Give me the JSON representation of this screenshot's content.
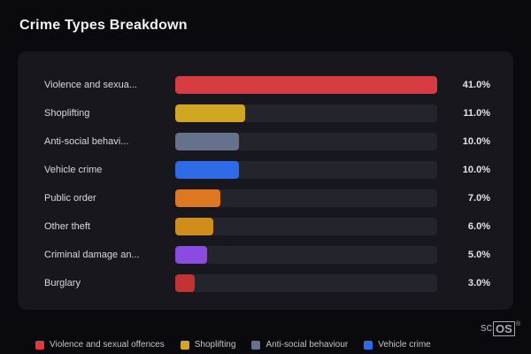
{
  "title": "Crime Types Breakdown",
  "chart_data": {
    "type": "bar",
    "orientation": "horizontal",
    "title": "Crime Types Breakdown",
    "xlabel": "",
    "ylabel": "",
    "xlim": [
      0,
      41
    ],
    "grid": false,
    "legend_position": "bottom",
    "categories": [
      "Violence and sexual offences",
      "Shoplifting",
      "Anti-social behaviour",
      "Vehicle crime",
      "Public order",
      "Other theft",
      "Criminal damage and arson",
      "Burglary"
    ],
    "display_labels": [
      "Violence and sexua...",
      "Shoplifting",
      "Anti-social behavi...",
      "Vehicle crime",
      "Public order",
      "Other theft",
      "Criminal damage an...",
      "Burglary"
    ],
    "values": [
      41.0,
      11.0,
      10.0,
      10.0,
      7.0,
      6.0,
      5.0,
      3.0
    ],
    "value_labels": [
      "41.0%",
      "11.0%",
      "10.0%",
      "10.0%",
      "7.0%",
      "6.0%",
      "5.0%",
      "3.0%"
    ],
    "colors": [
      "#d63c40",
      "#d1a622",
      "#66718c",
      "#2e6be6",
      "#dd7722",
      "#cf8e1c",
      "#8b4be0",
      "#c03434"
    ]
  },
  "legend": [
    {
      "label": "Violence and sexual offences",
      "color": "#d63c40"
    },
    {
      "label": "Shoplifting",
      "color": "#d1a622"
    },
    {
      "label": "Anti-social behaviour",
      "color": "#66718c"
    },
    {
      "label": "Vehicle crime",
      "color": "#2e6be6"
    }
  ],
  "branding": {
    "prefix": "sc",
    "suffix": "OS",
    "registered": "®"
  },
  "colors": {
    "background": "#0a0a0e",
    "card": "#17171d",
    "track": "#24242c",
    "title_text": "#f2f2f5",
    "label_text": "#d8d8de",
    "value_text": "#e2e2e6",
    "legend_text": "#c4c4bb",
    "brand_text": "#a8a8b0"
  }
}
